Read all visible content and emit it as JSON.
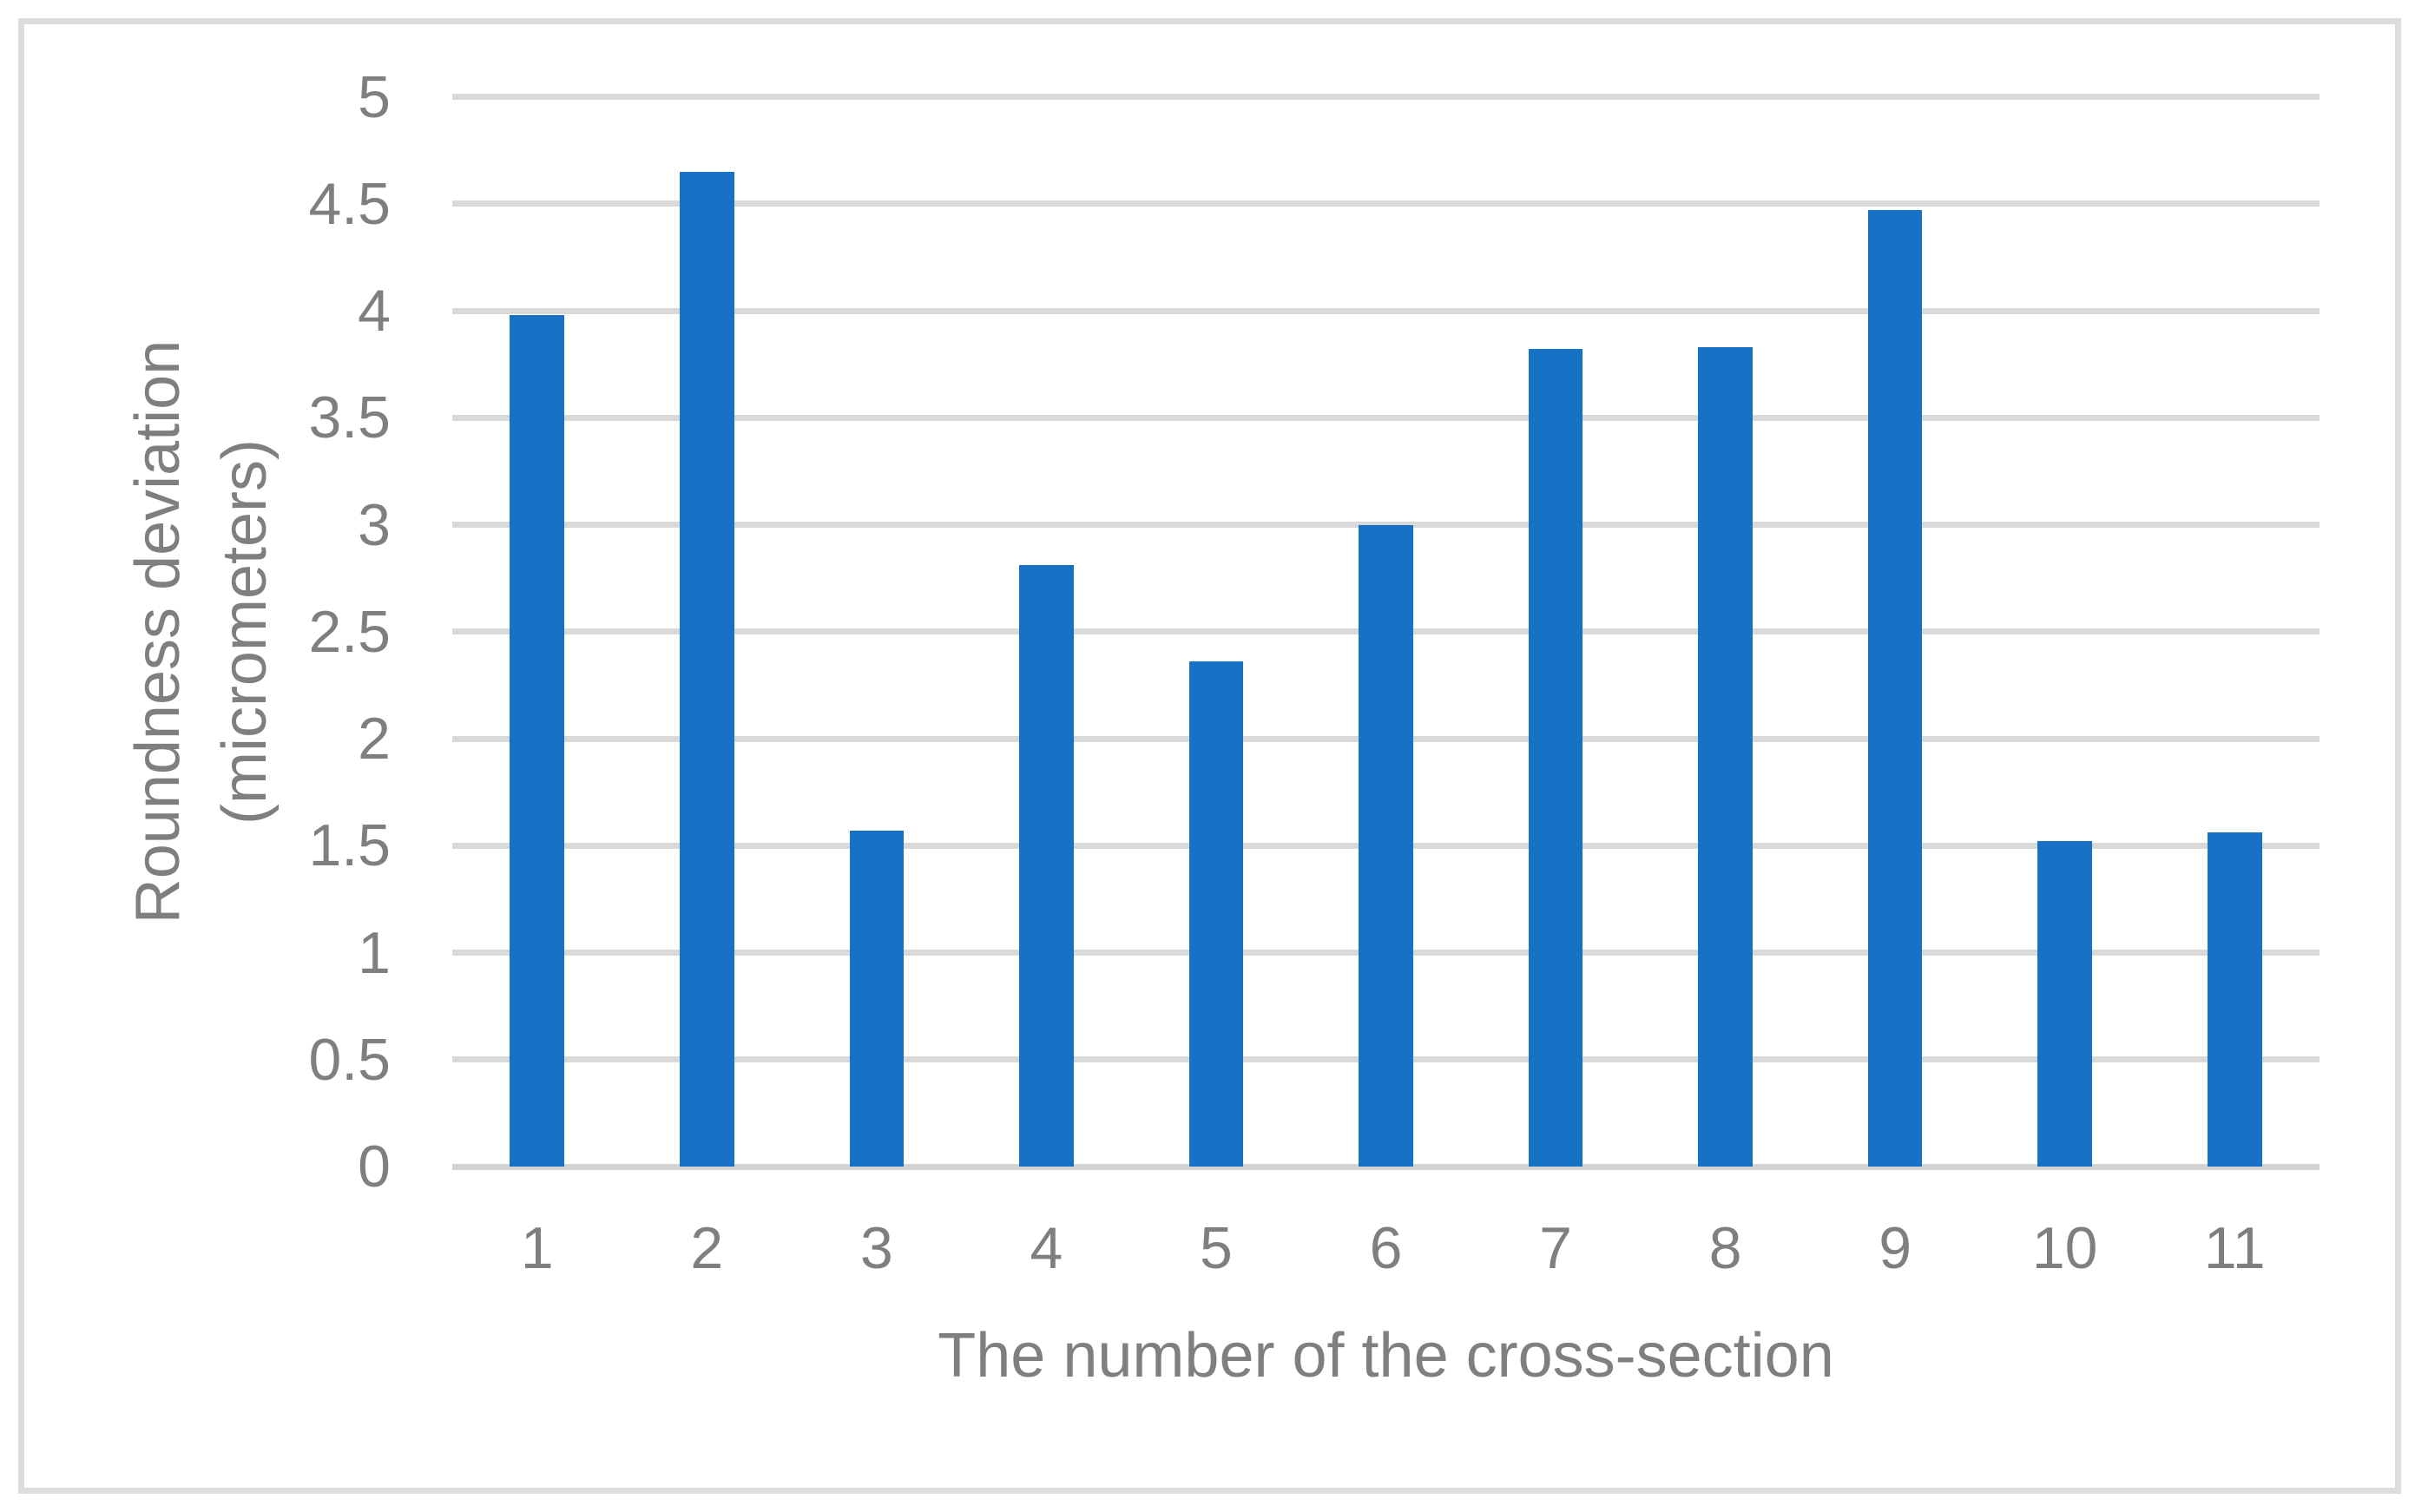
{
  "figure": {
    "background_color": "#FFFFFF",
    "border_color": "#DCDCDC"
  },
  "chart_data": {
    "type": "bar",
    "title": "",
    "xlabel": "The number of the cross-section",
    "ylabel": "Roundness deviation (micrometers)",
    "ylabel_lines": [
      "Roundness deviation",
      "(micrometers)"
    ],
    "categories": [
      "1",
      "2",
      "3",
      "4",
      "5",
      "6",
      "7",
      "8",
      "9",
      "10",
      "11"
    ],
    "values": [
      3.98,
      4.65,
      1.57,
      2.81,
      2.36,
      3.0,
      3.82,
      3.83,
      4.47,
      1.52,
      1.56
    ],
    "ylim": [
      0,
      5
    ],
    "ytick_step": 0.5,
    "yticks": [
      "0",
      "0.5",
      "1",
      "1.5",
      "2",
      "2.5",
      "3",
      "3.5",
      "4",
      "4.5",
      "5"
    ],
    "grid": "horizontal",
    "legend": "none",
    "bar_color": "#1772C6",
    "gridline_color": "#D9D9D9",
    "label_color": "#7F7F7F"
  }
}
